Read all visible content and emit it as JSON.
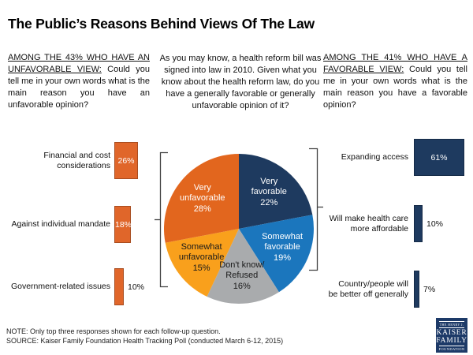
{
  "title": "The Public’s Reasons Behind Views Of The Law",
  "questions": {
    "left_underlined": "AMONG THE 43% WHO HAVE AN UNFAVORABLE VIEW:",
    "left_rest": " Could you tell me in your own words what is the main reason you have an unfavorable opinion?",
    "center": "As you may know, a health reform bill was signed into law in 2010.  Given what you know about the health reform law, do you have a generally favorable or generally unfavorable opinion of it?",
    "right_underlined": "AMONG THE 41% WHO HAVE A FAVORABLE VIEW:",
    "right_rest": " Could you tell me in your own words what is the main reason you have a favorable opinion?"
  },
  "chart_data": [
    {
      "type": "pie",
      "name": "views-of-the-health-reform-law",
      "start_angle_deg": 0,
      "clockwise": true,
      "slices": [
        {
          "label": "Very favorable",
          "lines": [
            "Very",
            "favorable"
          ],
          "value": 22,
          "color": "#1e3a5f",
          "text_color": "#ffffff"
        },
        {
          "label": "Somewhat favorable",
          "lines": [
            "Somewhat",
            "favorable"
          ],
          "value": 19,
          "color": "#1b76bd",
          "text_color": "#ffffff"
        },
        {
          "label": "Don't know/Refused",
          "lines": [
            "Don't know/",
            "Refused"
          ],
          "value": 16,
          "color": "#a9abad",
          "text_color": "#1a1a1a"
        },
        {
          "label": "Somewhat unfavorable",
          "lines": [
            "Somewhat",
            "unfavorable"
          ],
          "value": 15,
          "color": "#f9a01c",
          "text_color": "#1a1a1a"
        },
        {
          "label": "Very unfavorable",
          "lines": [
            "Very",
            "unfavorable"
          ],
          "value": 28,
          "color": "#e2661e",
          "text_color": "#ffffff"
        }
      ]
    },
    {
      "type": "bar",
      "name": "unfavorable-reasons",
      "color": "#e0662a",
      "categories": [
        "Financial and cost considerations",
        "Against individual mandate",
        "Government-related issues"
      ],
      "category_lines": [
        [
          "Financial and cost",
          "considerations"
        ],
        [
          "Against individual mandate"
        ],
        [
          "Government-related issues"
        ]
      ],
      "values": [
        26,
        18,
        10
      ],
      "value_suffix": "%"
    },
    {
      "type": "bar",
      "name": "favorable-reasons",
      "color": "#1e3a5f",
      "categories": [
        "Expanding access",
        "Will make health care more affordable",
        "Country/people will be better off generally"
      ],
      "category_lines": [
        [
          "Expanding access"
        ],
        [
          "Will make health care",
          "more affordable"
        ],
        [
          "Country/people will",
          "be better off generally"
        ]
      ],
      "values": [
        61,
        10,
        7
      ],
      "value_suffix": "%"
    }
  ],
  "footer": {
    "note": "NOTE: Only top three responses shown for each follow-up question.",
    "source": "SOURCE: Kaiser Family Foundation Health Tracking Poll (conducted March 6-12, 2015)"
  },
  "logo": {
    "line1": "THE HENRY J.",
    "line2": "KAISER",
    "line3": "FAMILY",
    "line4": "FOUNDATION"
  },
  "colors": {
    "navy": "#1e3a5f",
    "blue": "#1b76bd",
    "gray": "#a9abad",
    "orange": "#f9a01c",
    "dark_orange": "#e0662a",
    "bracket": "#404040"
  }
}
